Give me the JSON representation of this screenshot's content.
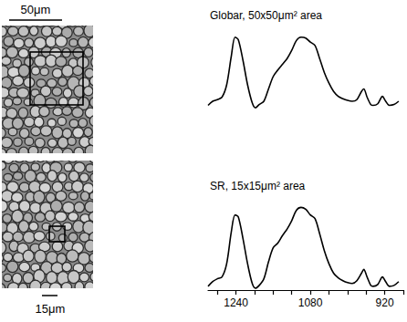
{
  "micrographs": {
    "top_scale_bar": "50μm",
    "bottom_scale_bar": "15μm"
  },
  "chart_data": [
    {
      "type": "line",
      "title": "Globar, 50x50μm² area",
      "tick_labels": false,
      "grid": false,
      "xlim": [
        1300,
        880
      ],
      "ylim": [
        0,
        1
      ],
      "series": [
        {
          "color": "#000000",
          "x": [
            1300,
            1290,
            1280,
            1270,
            1260,
            1250,
            1242,
            1235,
            1225,
            1215,
            1205,
            1198,
            1190,
            1180,
            1170,
            1160,
            1150,
            1140,
            1130,
            1120,
            1110,
            1100,
            1090,
            1080,
            1070,
            1060,
            1050,
            1040,
            1030,
            1020,
            1010,
            1000,
            990,
            980,
            970,
            965,
            958,
            950,
            945,
            935,
            925,
            918,
            910,
            900,
            890
          ],
          "values": [
            0.05,
            0.1,
            0.12,
            0.15,
            0.3,
            0.65,
            0.88,
            0.85,
            0.6,
            0.3,
            0.08,
            0.02,
            0.06,
            0.1,
            0.25,
            0.4,
            0.48,
            0.55,
            0.62,
            0.72,
            0.84,
            0.88,
            0.87,
            0.82,
            0.78,
            0.62,
            0.45,
            0.32,
            0.22,
            0.16,
            0.13,
            0.11,
            0.1,
            0.12,
            0.22,
            0.25,
            0.15,
            0.06,
            0.05,
            0.07,
            0.16,
            0.1,
            0.05,
            0.06,
            0.1
          ]
        }
      ]
    },
    {
      "type": "line",
      "title": "SR, 15x15μm² area",
      "tick_labels": "x",
      "grid": false,
      "xlim": [
        1300,
        880
      ],
      "ylim": [
        0,
        1
      ],
      "xticks": [
        1240,
        1080,
        920
      ],
      "minor_xticks": [
        1280,
        1200,
        1160,
        1120,
        1040,
        1000,
        960,
        880
      ],
      "series": [
        {
          "color": "#000000",
          "x": [
            1300,
            1290,
            1280,
            1270,
            1260,
            1250,
            1242,
            1235,
            1225,
            1215,
            1205,
            1198,
            1190,
            1180,
            1170,
            1160,
            1150,
            1140,
            1130,
            1120,
            1110,
            1100,
            1090,
            1080,
            1070,
            1060,
            1050,
            1040,
            1030,
            1020,
            1010,
            1000,
            990,
            980,
            970,
            965,
            958,
            950,
            945,
            935,
            925,
            918,
            910,
            900,
            890
          ],
          "values": [
            0.04,
            0.09,
            0.12,
            0.14,
            0.28,
            0.62,
            0.8,
            0.78,
            0.55,
            0.28,
            0.07,
            0.02,
            0.05,
            0.12,
            0.3,
            0.45,
            0.5,
            0.58,
            0.65,
            0.74,
            0.85,
            0.88,
            0.86,
            0.8,
            0.76,
            0.6,
            0.42,
            0.28,
            0.18,
            0.13,
            0.1,
            0.08,
            0.07,
            0.1,
            0.18,
            0.22,
            0.14,
            0.05,
            0.04,
            0.06,
            0.14,
            0.09,
            0.04,
            0.05,
            0.09
          ]
        }
      ]
    }
  ]
}
